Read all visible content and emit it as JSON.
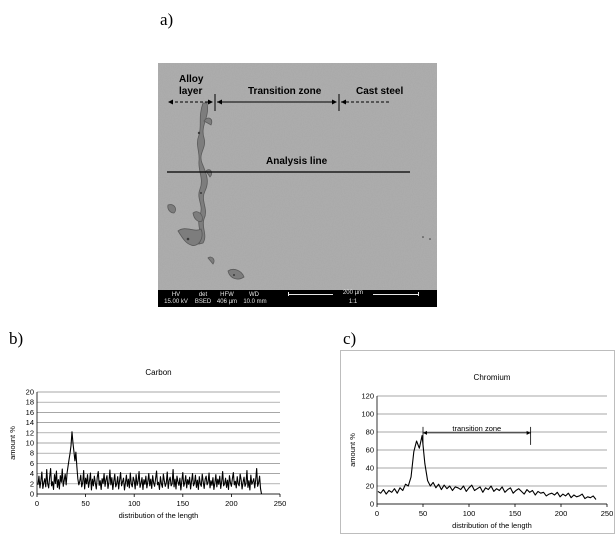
{
  "panels": [
    {
      "letter": "a)"
    },
    {
      "letter": "b)"
    },
    {
      "letter": "c)"
    }
  ],
  "micrograph": {
    "labels": {
      "alloy_layer_line1": "Alloy",
      "alloy_layer_line2": "layer",
      "transition_zone": "Transition zone",
      "cast_steel": "Cast steel",
      "analysis_line": "Analysis line"
    },
    "databar": {
      "hv_label": "HV",
      "hv_value": "15.00 kV",
      "det_label": "det",
      "det_value": "BSED",
      "hfw_label": "HFW",
      "hfw_value": "406 µm",
      "wd_label": "WD",
      "wd_value": "10.0 mm",
      "scale_label": "200 µm",
      "scale_sub": "1:1"
    }
  },
  "chart_data": [
    {
      "type": "line",
      "title": "Carbon",
      "xlabel": "distribution of the length",
      "ylabel": "amount %",
      "xlim": [
        0,
        250
      ],
      "ylim": [
        0,
        20
      ],
      "xticks": [
        0,
        50,
        100,
        150,
        200,
        250
      ],
      "yticks": [
        0,
        2,
        4,
        6,
        8,
        10,
        12,
        14,
        16,
        18,
        20
      ],
      "grid": true,
      "color": "#000000",
      "x_start": 1,
      "x_step": 1,
      "y": [
        1.8,
        3.5,
        1.2,
        2.6,
        4.3,
        1.1,
        2.2,
        3.0,
        1.4,
        4.8,
        2.0,
        1.2,
        3.3,
        5.0,
        1.6,
        2.4,
        0.9,
        3.8,
        2.1,
        4.5,
        1.3,
        2.8,
        1.0,
        3.6,
        2.3,
        4.9,
        1.5,
        2.7,
        3.9,
        1.8,
        4.2,
        5.5,
        6.8,
        8.0,
        9.5,
        12.2,
        10.0,
        8.3,
        6.5,
        8.2,
        5.4,
        3.0,
        1.8,
        2.5,
        3.7,
        1.4,
        2.2,
        4.6,
        1.0,
        3.1,
        2.0,
        3.8,
        1.3,
        2.5,
        4.1,
        0.8,
        2.9,
        1.6,
        3.5,
        2.2,
        1.0,
        3.3,
        4.4,
        1.7,
        2.6,
        0.9,
        3.0,
        2.1,
        4.0,
        1.5,
        2.8,
        3.6,
        1.1,
        2.3,
        4.7,
        1.8,
        3.2,
        0.9,
        2.5,
        3.9,
        1.4,
        2.0,
        3.4,
        1.0,
        2.7,
        4.2,
        1.6,
        2.4,
        3.1,
        0.8,
        2.2,
        3.7,
        1.5,
        2.9,
        1.2,
        4.1,
        2.0,
        1.4,
        3.3,
        2.6,
        1.0,
        3.8,
        1.7,
        2.5,
        4.4,
        1.3,
        2.1,
        3.2,
        0.9,
        2.8,
        1.9,
        3.5,
        1.2,
        2.4,
        4.0,
        1.6,
        2.9,
        1.1,
        3.6,
        2.2,
        1.5,
        3.0,
        4.5,
        1.8,
        2.3,
        0.9,
        3.4,
        2.0,
        1.3,
        3.9,
        2.6,
        1.5,
        2.2,
        4.3,
        1.1,
        2.7,
        3.3,
        1.6,
        2.0,
        4.8,
        1.4,
        2.9,
        1.0,
        3.5,
        2.4,
        1.7,
        3.1,
        0.8,
        2.6,
        4.2,
        1.5,
        2.2,
        3.6,
        1.2,
        2.8,
        1.9,
        3.3,
        1.0,
        2.5,
        4.0,
        1.6,
        2.1,
        3.7,
        1.3,
        2.7,
        0.9,
        3.4,
        2.0,
        1.5,
        3.9,
        2.4,
        1.1,
        2.9,
        3.5,
        1.8,
        2.3,
        4.1,
        1.2,
        2.6,
        1.7,
        3.2,
        0.9,
        2.2,
        3.8,
        1.4,
        2.9,
        1.9,
        3.5,
        1.1,
        2.4,
        4.4,
        1.6,
        2.0,
        3.1,
        1.3,
        2.7,
        0.9,
        3.6,
        2.2,
        1.5,
        3.0,
        4.2,
        1.8,
        2.5,
        1.2,
        3.4,
        2.0,
        1.6,
        3.9,
        2.8,
        1.0,
        2.3,
        3.3,
        1.5,
        2.1,
        4.6,
        1.3,
        2.6,
        0.8,
        3.7,
        1.9,
        2.4,
        3.0,
        1.2,
        2.8,
        5.0,
        1.5,
        2.2,
        3.5,
        1.0,
        0.0
      ]
    },
    {
      "type": "line",
      "title": "Chromium",
      "xlabel": "distribution of the length",
      "ylabel": "amount %",
      "xlim": [
        0,
        250
      ],
      "ylim": [
        0,
        120
      ],
      "xticks": [
        0,
        50,
        100,
        150,
        200,
        250
      ],
      "yticks": [
        0,
        20,
        40,
        60,
        80,
        100,
        120
      ],
      "grid": true,
      "color": "#000000",
      "x_start": 1,
      "x_step": 3,
      "y": [
        14,
        12,
        16,
        11,
        15,
        13,
        17,
        12,
        18,
        15,
        22,
        20,
        30,
        58,
        70,
        62,
        76,
        45,
        26,
        20,
        24,
        18,
        22,
        16,
        21,
        17,
        20,
        15,
        19,
        18,
        16,
        20,
        14,
        18,
        21,
        15,
        17,
        19,
        13,
        18,
        16,
        20,
        14,
        17,
        15,
        19,
        13,
        16,
        18,
        12,
        15,
        17,
        14,
        11,
        16,
        13,
        15,
        10,
        14,
        12,
        13,
        9,
        11,
        12,
        10,
        13,
        8,
        11,
        9,
        12,
        7,
        10,
        8,
        9,
        11,
        6,
        8,
        7,
        9,
        5
      ],
      "annotations": [
        {
          "text": "transition zone",
          "x_from": 50,
          "x_to": 167,
          "y": 79
        }
      ]
    }
  ]
}
